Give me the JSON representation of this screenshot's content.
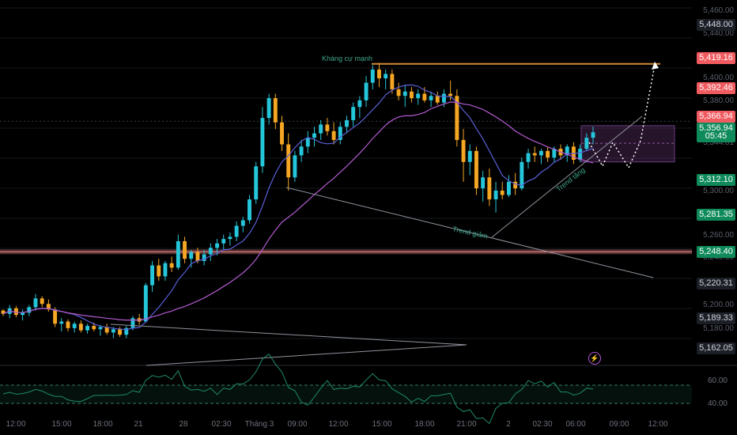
{
  "chart_data": {
    "type": "candlestick",
    "symbol": "",
    "ylim": [
      5148,
      5470
    ],
    "price_labels": [
      {
        "value": "5,448.00",
        "style": "grey"
      },
      {
        "value": "5,419.16",
        "style": "red"
      },
      {
        "value": "5,392.46",
        "style": "red"
      },
      {
        "value": "5,366.94",
        "style": "red"
      },
      {
        "value": "5,356.94",
        "style": "green"
      },
      {
        "value": "05:45",
        "style": "green"
      },
      {
        "value": "5,312.10",
        "style": "green"
      },
      {
        "value": "5,281.35",
        "style": "green"
      },
      {
        "value": "5,248.40",
        "style": "green"
      },
      {
        "value": "5,220.31",
        "style": "grey"
      },
      {
        "value": "5,189.33",
        "style": "grey"
      },
      {
        "value": "5,162.05",
        "style": "grey"
      }
    ],
    "faint_ticks": [
      "5,460.00",
      "5,440.00",
      "5,400.00",
      "5,380.00",
      "5,360.00",
      "5,344.61",
      "5,300.00",
      "5,260.00",
      "5,240.00",
      "5,200.00",
      "5,180.00",
      "5,160.00"
    ],
    "x_ticks": [
      "12:00",
      "15:00",
      "18:00",
      "21",
      "28",
      "02:30",
      "Tháng 3",
      "09:00",
      "12:00",
      "15:00",
      "18:00",
      "21:00",
      "2",
      "02:30",
      "06:00",
      "09:00",
      "12:00"
    ],
    "annotations": {
      "resistance": "Kháng cự mạnh",
      "downtrend": "Trend giảm",
      "uptrend": "Trend tăng"
    },
    "horizontal_levels": [
      5419.16,
      5248.4
    ],
    "candles": [
      [
        5195,
        5196,
        5190,
        5192
      ],
      [
        5192,
        5200,
        5188,
        5197
      ],
      [
        5197,
        5199,
        5189,
        5191
      ],
      [
        5191,
        5196,
        5186,
        5193
      ],
      [
        5193,
        5200,
        5190,
        5198
      ],
      [
        5198,
        5210,
        5195,
        5206
      ],
      [
        5206,
        5208,
        5198,
        5201
      ],
      [
        5201,
        5205,
        5194,
        5196
      ],
      [
        5196,
        5198,
        5180,
        5183
      ],
      [
        5183,
        5188,
        5176,
        5185
      ],
      [
        5185,
        5187,
        5176,
        5179
      ],
      [
        5179,
        5185,
        5175,
        5183
      ],
      [
        5183,
        5186,
        5175,
        5177
      ],
      [
        5177,
        5183,
        5174,
        5181
      ],
      [
        5181,
        5184,
        5176,
        5178
      ],
      [
        5178,
        5182,
        5172,
        5180
      ],
      [
        5180,
        5183,
        5173,
        5175
      ],
      [
        5175,
        5180,
        5170,
        5178
      ],
      [
        5178,
        5180,
        5171,
        5173
      ],
      [
        5173,
        5181,
        5170,
        5179
      ],
      [
        5179,
        5190,
        5177,
        5188
      ],
      [
        5188,
        5192,
        5182,
        5185
      ],
      [
        5185,
        5220,
        5184,
        5218
      ],
      [
        5218,
        5240,
        5212,
        5236
      ],
      [
        5236,
        5242,
        5222,
        5226
      ],
      [
        5226,
        5240,
        5222,
        5238
      ],
      [
        5238,
        5244,
        5230,
        5234
      ],
      [
        5234,
        5264,
        5232,
        5258
      ],
      [
        5258,
        5262,
        5238,
        5242
      ],
      [
        5242,
        5250,
        5234,
        5248
      ],
      [
        5248,
        5252,
        5238,
        5240
      ],
      [
        5240,
        5250,
        5236,
        5246
      ],
      [
        5246,
        5256,
        5240,
        5252
      ],
      [
        5252,
        5260,
        5245,
        5256
      ],
      [
        5256,
        5264,
        5250,
        5260
      ],
      [
        5260,
        5266,
        5254,
        5262
      ],
      [
        5262,
        5276,
        5258,
        5272
      ],
      [
        5272,
        5280,
        5266,
        5277
      ],
      [
        5277,
        5300,
        5274,
        5296
      ],
      [
        5296,
        5330,
        5292,
        5326
      ],
      [
        5326,
        5380,
        5320,
        5370
      ],
      [
        5370,
        5392,
        5364,
        5388
      ],
      [
        5388,
        5392,
        5360,
        5366
      ],
      [
        5366,
        5372,
        5340,
        5346
      ],
      [
        5346,
        5356,
        5304,
        5316
      ],
      [
        5316,
        5340,
        5312,
        5336
      ],
      [
        5336,
        5350,
        5330,
        5344
      ],
      [
        5344,
        5358,
        5338,
        5352
      ],
      [
        5352,
        5362,
        5344,
        5356
      ],
      [
        5356,
        5368,
        5350,
        5364
      ],
      [
        5364,
        5370,
        5354,
        5358
      ],
      [
        5358,
        5366,
        5346,
        5350
      ],
      [
        5350,
        5366,
        5346,
        5362
      ],
      [
        5362,
        5372,
        5356,
        5368
      ],
      [
        5368,
        5384,
        5362,
        5380
      ],
      [
        5380,
        5390,
        5370,
        5386
      ],
      [
        5386,
        5408,
        5380,
        5402
      ],
      [
        5402,
        5418,
        5396,
        5414
      ],
      [
        5414,
        5420,
        5398,
        5406
      ],
      [
        5406,
        5414,
        5396,
        5410
      ],
      [
        5410,
        5414,
        5392,
        5396
      ],
      [
        5396,
        5402,
        5386,
        5390
      ],
      [
        5390,
        5400,
        5380,
        5394
      ],
      [
        5394,
        5398,
        5384,
        5388
      ],
      [
        5388,
        5396,
        5382,
        5392
      ],
      [
        5392,
        5398,
        5384,
        5386
      ],
      [
        5386,
        5394,
        5380,
        5390
      ],
      [
        5390,
        5394,
        5382,
        5384
      ],
      [
        5384,
        5396,
        5380,
        5392
      ],
      [
        5392,
        5404,
        5386,
        5390
      ],
      [
        5390,
        5396,
        5344,
        5350
      ],
      [
        5350,
        5360,
        5312,
        5330
      ],
      [
        5330,
        5346,
        5318,
        5340
      ],
      [
        5340,
        5344,
        5300,
        5306
      ],
      [
        5306,
        5322,
        5294,
        5316
      ],
      [
        5316,
        5324,
        5290,
        5296
      ],
      [
        5296,
        5312,
        5284,
        5304
      ],
      [
        5304,
        5312,
        5296,
        5300
      ],
      [
        5300,
        5318,
        5298,
        5312
      ],
      [
        5312,
        5320,
        5300,
        5306
      ],
      [
        5306,
        5334,
        5304,
        5330
      ],
      [
        5330,
        5342,
        5324,
        5338
      ],
      [
        5338,
        5344,
        5330,
        5336
      ],
      [
        5336,
        5342,
        5328,
        5340
      ],
      [
        5340,
        5344,
        5330,
        5334
      ],
      [
        5334,
        5344,
        5330,
        5342
      ],
      [
        5342,
        5346,
        5332,
        5336
      ],
      [
        5336,
        5346,
        5330,
        5344
      ],
      [
        5344,
        5348,
        5328,
        5332
      ],
      [
        5332,
        5346,
        5330,
        5342
      ],
      [
        5342,
        5356,
        5340,
        5352
      ],
      [
        5352,
        5362,
        5346,
        5357
      ]
    ],
    "oscillator": {
      "levels": [
        "60.00",
        "40.00"
      ]
    }
  },
  "colors": {
    "up": "#26c6da",
    "down": "#f5a623",
    "ma_fast": "#5b5fd6",
    "ma_slow": "#b45ad0",
    "resistance": "#d08a3a",
    "support": "#f08a8a",
    "trend": "#8f939c",
    "zone": "rgba(150,80,170,0.25)",
    "osc": "#1f8a6a"
  }
}
